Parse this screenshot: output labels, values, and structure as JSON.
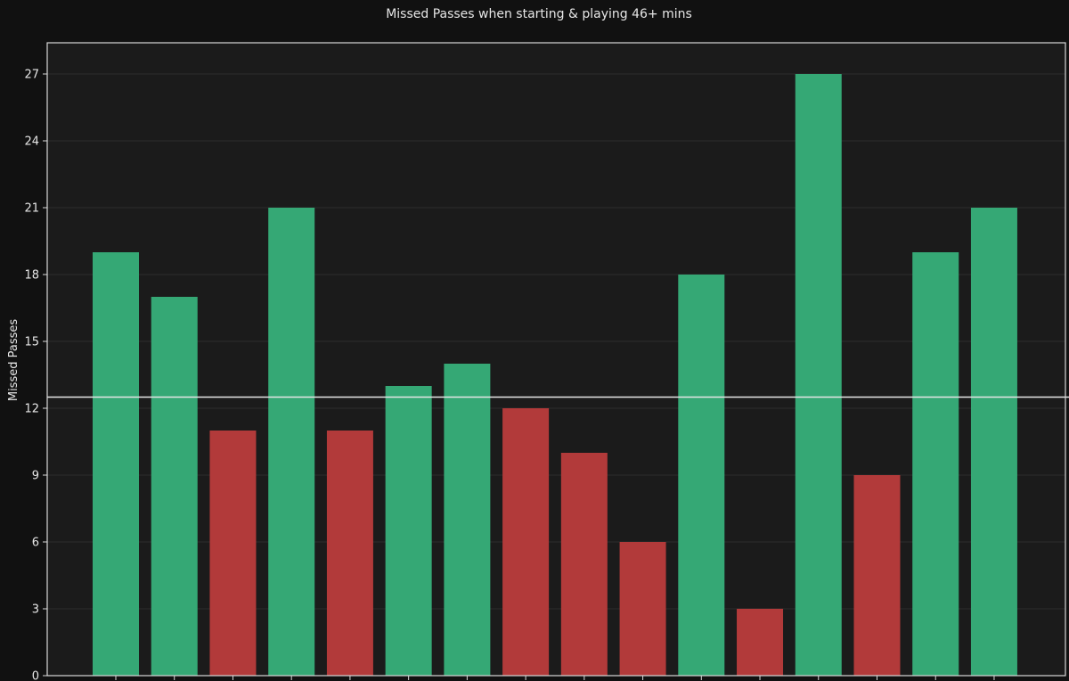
{
  "chart_data": {
    "type": "bar",
    "title": "Missed Passes when starting & playing 46+ mins",
    "xlabel": "",
    "ylabel": "Missed Passes",
    "categories": [
      "",
      "",
      "",
      "",
      "",
      "",
      "",
      "",
      "",
      "",
      "",
      "",
      "",
      "",
      "",
      ""
    ],
    "values": [
      19,
      17,
      11,
      21,
      11,
      13,
      14,
      12,
      10,
      6,
      18,
      3,
      27,
      9,
      19,
      21
    ],
    "threshold": 12.5,
    "ylim": [
      0,
      28.4
    ],
    "yticks": [
      0,
      3,
      6,
      9,
      12,
      15,
      18,
      21,
      24,
      27
    ],
    "grid": true,
    "colors": {
      "above_threshold": "#35a875",
      "below_threshold": "#b23a3a",
      "background": "#1b1b1b",
      "page_background": "#111111",
      "grid": "#2e2e2e",
      "axis": "#d8d8d8",
      "threshold_line": "#e6e6e6"
    }
  }
}
